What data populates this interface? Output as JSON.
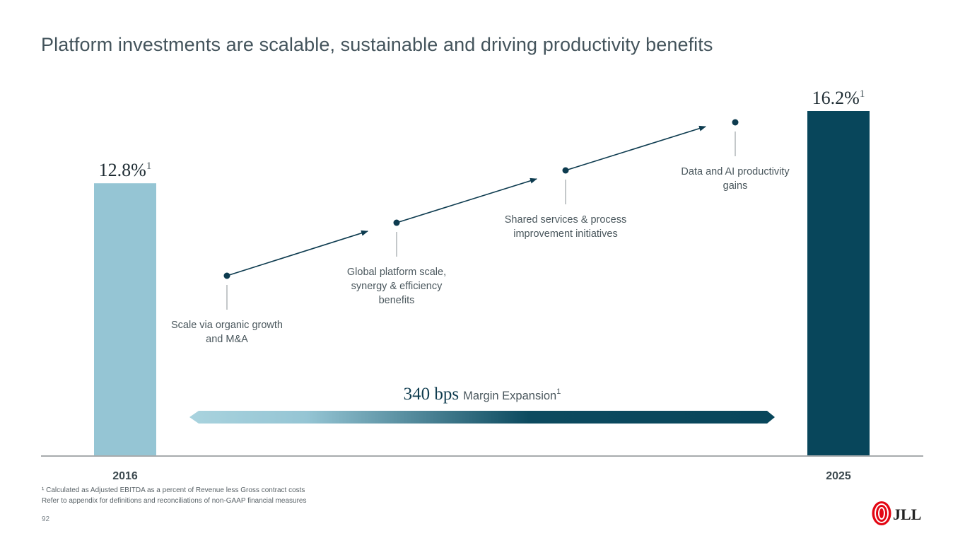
{
  "title": "Platform investments are scalable, sustainable and driving productivity benefits",
  "chart_data": {
    "type": "bar",
    "categories": [
      "2016",
      "2025"
    ],
    "values": [
      12.8,
      16.2
    ],
    "value_labels": [
      "12.8%",
      "16.2%"
    ],
    "footnote_marker": "1",
    "ylim": [
      0,
      16.2
    ],
    "colors": [
      "#95c5d4",
      "#08465b"
    ],
    "steps": [
      {
        "lines": [
          "Scale via organic growth",
          "and M&A"
        ]
      },
      {
        "lines": [
          "Global platform  scale,",
          "synergy & efficiency",
          "benefits"
        ]
      },
      {
        "lines": [
          "Shared services & process",
          "improvement initiatives"
        ]
      },
      {
        "lines": [
          "Data and AI productivity",
          "gains"
        ]
      }
    ],
    "expansion": {
      "value": "340 bps",
      "label": "Margin Expansion",
      "marker": "1"
    }
  },
  "footnotes": {
    "line1": "¹ Calculated as Adjusted EBITDA as a percent of Revenue less Gross contract costs",
    "line2": "Refer to appendix for definitions and reconciliations of non-GAAP financial measures"
  },
  "page_number": "92",
  "logo_text": "JLL",
  "colors": {
    "dark_teal": "#08465b",
    "light_blue": "#95c5d4",
    "text": "#44545c"
  }
}
